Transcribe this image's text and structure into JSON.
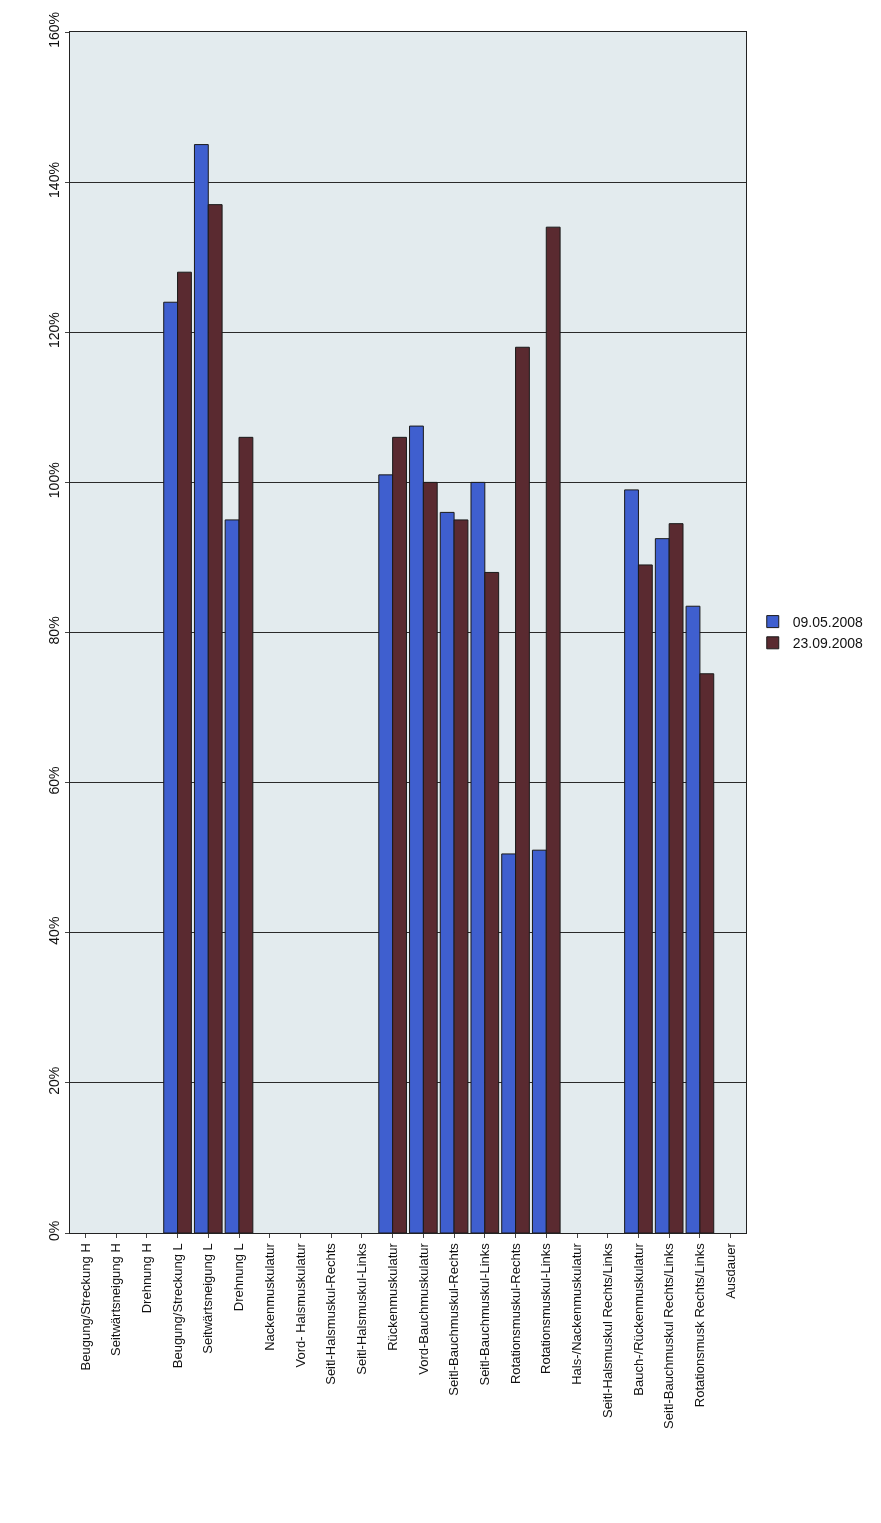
{
  "chart_data": {
    "type": "bar",
    "categories": [
      "Beugung/Streckung H",
      "Seitwärtsneigung H",
      "Drehnung H",
      "Beugung/Streckung L",
      "Seitwärtsneigung L",
      "Drehnung L",
      "Nackenmuskulatur",
      "Vord- Halsmuskulatur",
      "Seitl-Halsmuskul-Rechts",
      "Seitl-Halsmuskul-Links",
      "Rückenmuskulatur",
      "Vord-Bauchmuskulatur",
      "Seitl-Bauchmuskul-Rechts",
      "Seitl-Bauchmuskul-Links",
      "Rotationsmuskul-Rechts",
      "Rotationsmuskul-Links",
      "Hals-/Nackenmuskulatur",
      "Seitl-Halsmuskul Rechts/Links",
      "Bauch-/Rückenmuskulatur",
      "Seitl-Bauchmuskul Rechts/Links",
      "Rotationsmusk Rechts/Links",
      "Ausdauer"
    ],
    "series": [
      {
        "name": "09.05.2008",
        "color": "#3f5fcf",
        "values": [
          null,
          null,
          null,
          124,
          145,
          95,
          null,
          null,
          null,
          null,
          101,
          107.5,
          96,
          100,
          50.5,
          51,
          null,
          null,
          99,
          92.5,
          83.5,
          null
        ]
      },
      {
        "name": "23.09.2008",
        "color": "#5a2a30",
        "values": [
          null,
          null,
          null,
          128,
          137,
          106,
          null,
          null,
          null,
          null,
          106,
          100,
          95,
          88,
          118,
          134,
          null,
          null,
          89,
          94.5,
          74.5,
          null
        ]
      }
    ],
    "ylim": [
      0,
      160
    ],
    "yticks": [
      {
        "value": 0,
        "label": "0%"
      },
      {
        "value": 20,
        "label": "20%"
      },
      {
        "value": 40,
        "label": "40%"
      },
      {
        "value": 60,
        "label": "60%"
      },
      {
        "value": 80,
        "label": "80%"
      },
      {
        "value": 100,
        "label": "100%"
      },
      {
        "value": 120,
        "label": "120%"
      },
      {
        "value": 140,
        "label": "140%"
      },
      {
        "value": 160,
        "label": "160%"
      }
    ],
    "grid": "y",
    "legend": "right"
  }
}
